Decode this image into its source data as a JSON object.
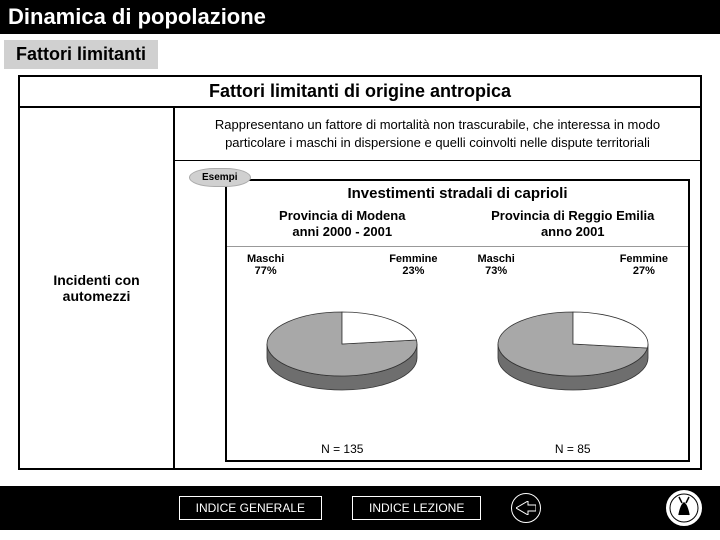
{
  "title": "Dinamica di popolazione",
  "subtitle": "Fattori limitanti",
  "main": {
    "header": "Fattori limitanti di origine antropica",
    "intro": "Rappresentano un fattore di mortalità non trascurabile, che interessa in modo particolare i maschi in dispersione e quelli coinvolti nelle dispute territoriali",
    "left_label": "Incidenti con automezzi",
    "esempi_label": "Esempi",
    "chart": {
      "title": "Investimenti stradali di caprioli",
      "type": "pie",
      "slice_color_main": "#a8a8a8",
      "slice_color_secondary": "#ffffff",
      "depth_color": "#6e6e6e",
      "stroke_color": "#333333",
      "panels": [
        {
          "province_line1": "Provincia di Modena",
          "province_line2": "anni 2000 - 2001",
          "segments": [
            {
              "label": "Maschi",
              "pct_text": "77%",
              "value": 77
            },
            {
              "label": "Femmine",
              "pct_text": "23%",
              "value": 23
            }
          ],
          "n_text": "N = 135"
        },
        {
          "province_line1": "Provincia di Reggio Emilia",
          "province_line2": "anno 2001",
          "segments": [
            {
              "label": "Maschi",
              "pct_text": "73%",
              "value": 73
            },
            {
              "label": "Femmine",
              "pct_text": "27%",
              "value": 27
            }
          ],
          "n_text": "N = 85"
        }
      ]
    }
  },
  "nav": {
    "indice_generale": "INDICE GENERALE",
    "indice_lezione": "INDICE LEZIONE"
  }
}
